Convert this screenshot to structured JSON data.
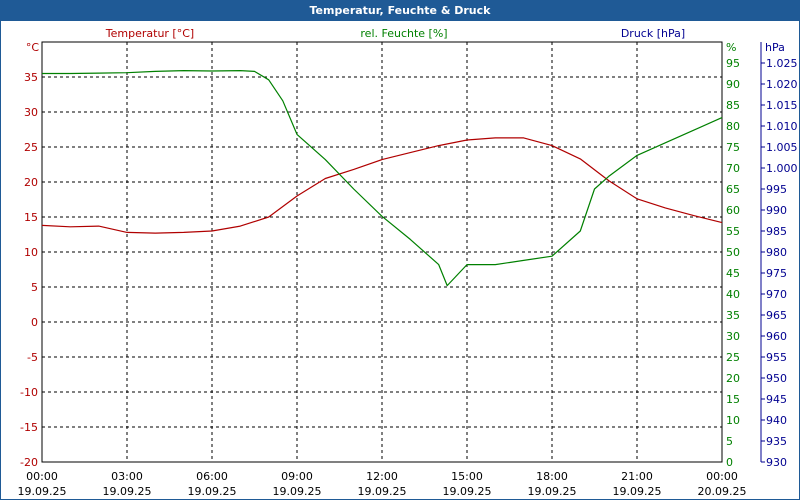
{
  "window": {
    "title": "Temperatur, Feuchte & Druck"
  },
  "colors": {
    "title_bar": "#1f5a96",
    "temperature": "#b00000",
    "humidity": "#008000",
    "pressure": "#000090",
    "grid": "#000000",
    "text": "#000000"
  },
  "chart_data": {
    "type": "line",
    "grid": true,
    "x": {
      "label": "",
      "ticks": [
        {
          "time": "00:00",
          "date": "19.09.25"
        },
        {
          "time": "03:00",
          "date": "19.09.25"
        },
        {
          "time": "06:00",
          "date": "19.09.25"
        },
        {
          "time": "09:00",
          "date": "19.09.25"
        },
        {
          "time": "12:00",
          "date": "19.09.25"
        },
        {
          "time": "15:00",
          "date": "19.09.25"
        },
        {
          "time": "18:00",
          "date": "19.09.25"
        },
        {
          "time": "21:00",
          "date": "19.09.25"
        },
        {
          "time": "00:00",
          "date": "20.09.25"
        }
      ],
      "range_hours": [
        0,
        24
      ]
    },
    "axes": {
      "temperature": {
        "label": "Temperatur [°C]",
        "unit": "°C",
        "ylim": [
          -20,
          40
        ],
        "ticks": [
          "-20",
          "-15",
          "-10",
          "-5",
          "0",
          "5",
          "10",
          "15",
          "20",
          "25",
          "30",
          "35"
        ]
      },
      "humidity": {
        "label": "rel. Feuchte [%]",
        "unit": "%",
        "ylim": [
          0,
          100
        ],
        "ticks": [
          "0",
          "5",
          "10",
          "15",
          "20",
          "25",
          "30",
          "35",
          "40",
          "45",
          "50",
          "55",
          "60",
          "65",
          "70",
          "75",
          "80",
          "85",
          "90",
          "95"
        ]
      },
      "pressure": {
        "label": "Druck [hPa]",
        "unit": "hPa",
        "ylim": [
          930,
          1030
        ],
        "ticks": [
          "930",
          "935",
          "940",
          "945",
          "950",
          "955",
          "960",
          "965",
          "970",
          "975",
          "980",
          "985",
          "990",
          "995",
          "1.000",
          "1.005",
          "1.010",
          "1.015",
          "1.020",
          "1.025"
        ]
      }
    },
    "series": [
      {
        "name": "Temperatur [°C]",
        "axis": "temperature",
        "x_hours": [
          0,
          1,
          2,
          3,
          4,
          5,
          6,
          7,
          8,
          9,
          10,
          11,
          12,
          13,
          14,
          15,
          16,
          17,
          18,
          19,
          20,
          21,
          22,
          23,
          24
        ],
        "values": [
          13.8,
          13.6,
          13.7,
          12.8,
          12.7,
          12.8,
          13.0,
          13.7,
          15.0,
          18.0,
          20.5,
          21.8,
          23.2,
          24.2,
          25.2,
          26.0,
          26.3,
          26.3,
          25.2,
          23.3,
          20.2,
          17.6,
          16.3,
          15.2,
          14.2
        ]
      },
      {
        "name": "rel. Feuchte [%]",
        "axis": "humidity",
        "x_hours": [
          0,
          1,
          2,
          3,
          4,
          5,
          6,
          7,
          7.5,
          8,
          8.5,
          9,
          10,
          11,
          12,
          13,
          14,
          14.3,
          15,
          16,
          17,
          18,
          19,
          19.5,
          20,
          21,
          22,
          23,
          24
        ],
        "values": [
          92.5,
          92.5,
          92.6,
          92.7,
          93.0,
          93.2,
          93.1,
          93.2,
          93.0,
          91.0,
          86.0,
          78.0,
          72.0,
          65.0,
          58.5,
          53.0,
          47.0,
          42.0,
          47.0,
          47.0,
          48.0,
          49.0,
          55.0,
          65.0,
          68.0,
          73.0,
          76.0,
          79.0,
          82.0
        ]
      }
    ]
  }
}
